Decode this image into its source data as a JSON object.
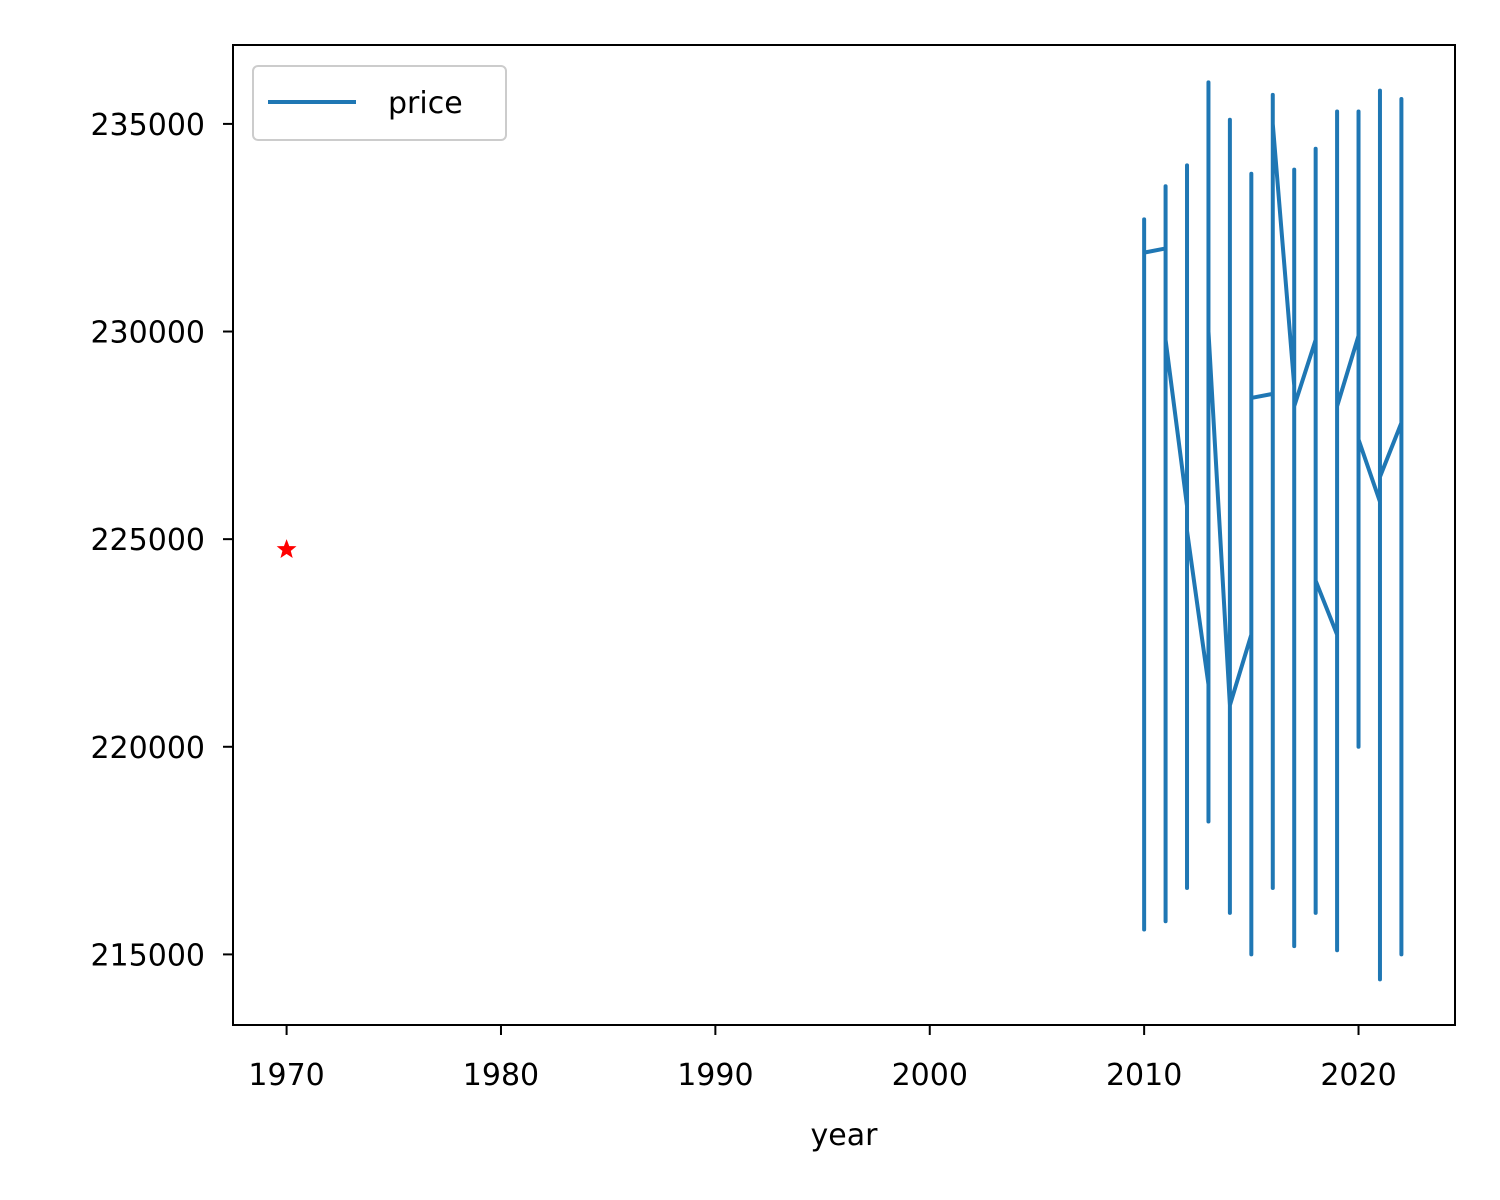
{
  "chart_data": {
    "type": "line",
    "title": "",
    "xlabel": "year",
    "ylabel": "",
    "xlim": [
      1967.5,
      2024.5
    ],
    "ylim": [
      213300,
      236900
    ],
    "xticks": [
      1970,
      1980,
      1990,
      2000,
      2010,
      2020
    ],
    "yticks": [
      215000,
      220000,
      225000,
      230000,
      235000
    ],
    "grid": false,
    "legend": {
      "position": "upper-left",
      "entries": [
        "price"
      ]
    },
    "series": [
      {
        "name": "price",
        "color": "#1f77b4",
        "points": [
          [
            2010,
            225000
          ],
          [
            2010,
            232700
          ],
          [
            2010,
            215600
          ],
          [
            2010,
            231900
          ],
          [
            2011,
            232000
          ],
          [
            2011,
            233500
          ],
          [
            2011,
            215800
          ],
          [
            2011,
            229800
          ],
          [
            2012,
            225800
          ],
          [
            2012,
            234000
          ],
          [
            2012,
            216600
          ],
          [
            2012,
            225200
          ],
          [
            2013,
            221500
          ],
          [
            2013,
            236000
          ],
          [
            2013,
            218200
          ],
          [
            2013,
            230000
          ],
          [
            2014,
            221000
          ],
          [
            2014,
            235100
          ],
          [
            2014,
            216000
          ],
          [
            2014,
            221000
          ],
          [
            2015,
            222700
          ],
          [
            2015,
            233800
          ],
          [
            2015,
            215000
          ],
          [
            2015,
            228400
          ],
          [
            2016,
            228500
          ],
          [
            2016,
            235700
          ],
          [
            2016,
            216600
          ],
          [
            2016,
            235000
          ],
          [
            2017,
            228700
          ],
          [
            2017,
            233900
          ],
          [
            2017,
            215200
          ],
          [
            2017,
            228200
          ],
          [
            2018,
            229800
          ],
          [
            2018,
            234400
          ],
          [
            2018,
            216000
          ],
          [
            2018,
            224000
          ],
          [
            2019,
            222700
          ],
          [
            2019,
            235300
          ],
          [
            2019,
            215100
          ],
          [
            2019,
            228200
          ],
          [
            2020,
            229900
          ],
          [
            2020,
            235300
          ],
          [
            2020,
            220000
          ],
          [
            2020,
            227400
          ],
          [
            2021,
            225900
          ],
          [
            2021,
            235800
          ],
          [
            2021,
            214400
          ],
          [
            2021,
            226500
          ],
          [
            2022,
            227800
          ],
          [
            2022,
            235600
          ],
          [
            2022,
            215000
          ],
          [
            2022,
            227800
          ]
        ]
      }
    ],
    "markers": [
      {
        "x": 1970,
        "y": 224750,
        "symbol": "star",
        "color": "#ff0000"
      }
    ]
  }
}
